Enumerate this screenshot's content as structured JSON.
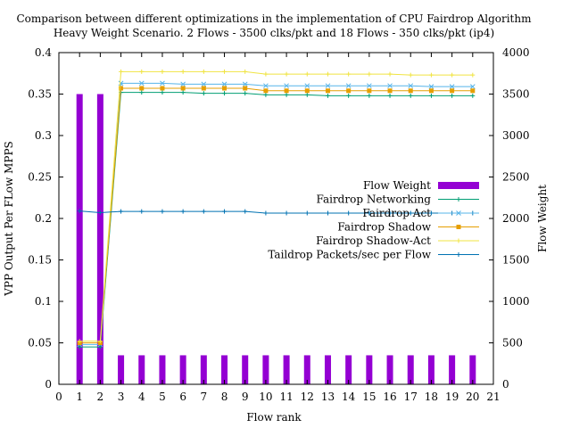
{
  "chart_data": {
    "type": "bar",
    "title": "Comparison between different optimizations in the implementation of CPU Fairdrop Algorithm",
    "subtitle": "Heavy Weight Scenario. 2 Flows - 3500 clks/pkt and 18 Flows - 350 clks/pkt (ip4)",
    "xlabel": "Flow rank",
    "ylabel": "VPP Output Per FLow MPPS",
    "y2label": "Flow Weight",
    "xlim": [
      0,
      21
    ],
    "ylim": [
      0,
      0.4
    ],
    "y2lim": [
      0,
      4000
    ],
    "xticks": [
      0,
      1,
      2,
      3,
      4,
      5,
      6,
      7,
      8,
      9,
      10,
      11,
      12,
      13,
      14,
      15,
      16,
      17,
      18,
      19,
      20,
      21
    ],
    "yticks": [
      0,
      0.05,
      0.1,
      0.15,
      0.2,
      0.25,
      0.3,
      0.35,
      0.4
    ],
    "ytick_labels": [
      "0",
      "0.05",
      "0.1",
      "0.15",
      "0.2",
      "0.25",
      "0.3",
      "0.35",
      "0.4"
    ],
    "y2ticks": [
      0,
      500,
      1000,
      1500,
      2000,
      2500,
      3000,
      3500,
      4000
    ],
    "grid": false,
    "legend_position": "right",
    "x": [
      1,
      2,
      3,
      4,
      5,
      6,
      7,
      8,
      9,
      10,
      11,
      12,
      13,
      14,
      15,
      16,
      17,
      18,
      19,
      20
    ],
    "bars": {
      "name": "Flow Weight",
      "axis": "y2",
      "color": "#9400d3",
      "values": [
        3500,
        3500,
        350,
        350,
        350,
        350,
        350,
        350,
        350,
        350,
        350,
        350,
        350,
        350,
        350,
        350,
        350,
        350,
        350,
        350
      ]
    },
    "series": [
      {
        "name": "Fairdrop Networking",
        "color": "#009e73",
        "marker": "plus",
        "values": [
          0.045,
          0.045,
          0.352,
          0.352,
          0.352,
          0.352,
          0.351,
          0.351,
          0.351,
          0.349,
          0.349,
          0.349,
          0.348,
          0.348,
          0.348,
          0.348,
          0.348,
          0.348,
          0.348,
          0.348
        ]
      },
      {
        "name": "Fairdrop Act",
        "color": "#56b4e9",
        "marker": "cross",
        "values": [
          0.048,
          0.048,
          0.363,
          0.363,
          0.363,
          0.362,
          0.362,
          0.362,
          0.362,
          0.36,
          0.36,
          0.36,
          0.36,
          0.36,
          0.36,
          0.36,
          0.36,
          0.359,
          0.359,
          0.359
        ]
      },
      {
        "name": "Fairdrop Shadow",
        "color": "#e69f00",
        "marker": "square",
        "values": [
          0.05,
          0.05,
          0.357,
          0.357,
          0.357,
          0.357,
          0.357,
          0.357,
          0.357,
          0.354,
          0.354,
          0.354,
          0.354,
          0.354,
          0.354,
          0.354,
          0.354,
          0.354,
          0.354,
          0.354
        ]
      },
      {
        "name": "Fairdrop Shadow-Act",
        "color": "#f0e442",
        "marker": "plus",
        "values": [
          0.052,
          0.052,
          0.377,
          0.377,
          0.377,
          0.377,
          0.377,
          0.377,
          0.377,
          0.374,
          0.374,
          0.374,
          0.374,
          0.374,
          0.374,
          0.374,
          0.373,
          0.373,
          0.373,
          0.373
        ]
      },
      {
        "name": "Taildrop Packets/sec per Flow",
        "color": "#0072b2",
        "marker": "plus",
        "axis": "y2",
        "values": [
          2090,
          2070,
          2085,
          2085,
          2085,
          2085,
          2085,
          2085,
          2085,
          2065,
          2065,
          2065,
          2065,
          2065,
          2065,
          2065,
          2065,
          2065,
          2065,
          2065
        ]
      }
    ]
  }
}
